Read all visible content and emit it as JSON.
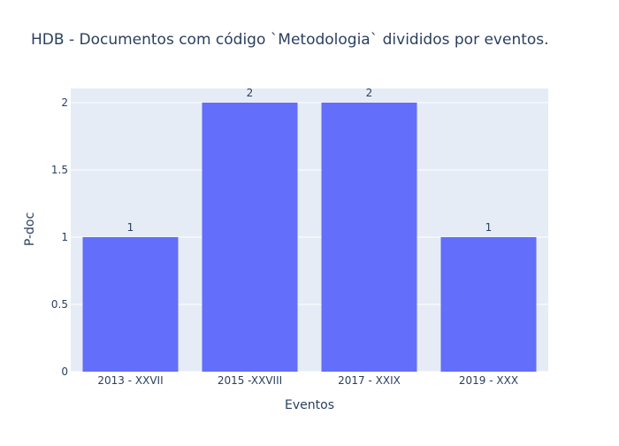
{
  "chart_data": {
    "type": "bar",
    "title": "HDB - Documentos com código `Metodologia` divididos por eventos.",
    "xlabel": "Eventos",
    "ylabel": "P-doc",
    "categories": [
      "2013 - XXVII",
      "2015 -XXVIII",
      "2017 - XXIX",
      "2019 - XXX"
    ],
    "values": [
      1,
      2,
      2,
      1
    ],
    "data_labels": [
      "1",
      "2",
      "2",
      "1"
    ],
    "ylim": [
      0,
      2.105
    ],
    "y_ticks": [
      0,
      0.5,
      1,
      1.5,
      2
    ],
    "y_tick_labels": [
      "0",
      "0.5",
      "1",
      "1.5",
      "2"
    ],
    "grid": true,
    "legend": "none",
    "colors": {
      "bar": "#636efa",
      "plot_bg": "#e5ecf6",
      "grid": "#ffffff",
      "text": "#2a3f5f"
    }
  }
}
